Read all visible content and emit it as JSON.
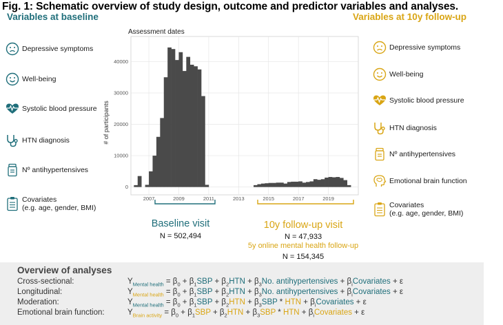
{
  "figure": {
    "title": "Fig. 1: Schematic overview of study design, outcome and predictor variables and analyses."
  },
  "colors": {
    "teal": "#1f6e7a",
    "gold": "#d9a514",
    "bar": "#4a4a4a",
    "panel": "#eeeeee"
  },
  "baseline": {
    "heading": "Variables at baseline",
    "items": [
      {
        "label": "Depressive symptoms",
        "icon": "sad-face-icon"
      },
      {
        "label": "Well-being",
        "icon": "smile-face-icon"
      },
      {
        "label": "Systolic blood pressure",
        "icon": "heart-pulse-icon"
      },
      {
        "label": "HTN diagnosis",
        "icon": "stethoscope-icon"
      },
      {
        "label": "Nº antihypertensives",
        "icon": "pill-bottle-icon"
      },
      {
        "label": "Covariates",
        "sublabel": "(e.g. age, gender, BMI)",
        "icon": "clipboard-icon"
      }
    ]
  },
  "followup": {
    "heading": "Variables at 10y follow-up",
    "items": [
      {
        "label": "Depressive symptoms",
        "icon": "sad-face-icon"
      },
      {
        "label": "Well-being",
        "icon": "smile-face-icon"
      },
      {
        "label": "Systolic blood pressure",
        "icon": "heart-pulse-icon"
      },
      {
        "label": "HTN diagnosis",
        "icon": "stethoscope-icon"
      },
      {
        "label": "Nº antihypertensives",
        "icon": "pill-bottle-icon"
      },
      {
        "label": "Emotional brain function",
        "icon": "brain-head-icon"
      },
      {
        "label": "Covariates",
        "sublabel": "(e.g. age, gender, BMI)",
        "icon": "clipboard-icon"
      }
    ]
  },
  "chart_data": {
    "type": "bar",
    "title": "Assessment dates",
    "xlabel": "",
    "ylabel": "# of participants",
    "xlim": [
      2005.8,
      2021.0
    ],
    "ylim": [
      -2500,
      48000
    ],
    "xticks": [
      2007,
      2009,
      2011,
      2013,
      2015,
      2017,
      2019
    ],
    "yticks": [
      0,
      10000,
      20000,
      30000,
      40000
    ],
    "grid": true,
    "bin_width": 0.25,
    "x": [
      2006.0,
      2006.25,
      2006.5,
      2006.75,
      2007.0,
      2007.25,
      2007.5,
      2007.75,
      2008.0,
      2008.25,
      2008.5,
      2008.75,
      2009.0,
      2009.25,
      2009.5,
      2009.75,
      2010.0,
      2010.25,
      2010.5,
      2010.75,
      2014.0,
      2014.25,
      2014.5,
      2014.75,
      2015.0,
      2015.25,
      2015.5,
      2015.75,
      2016.0,
      2016.25,
      2016.5,
      2016.75,
      2017.0,
      2017.25,
      2017.5,
      2017.75,
      2018.0,
      2018.25,
      2018.5,
      2018.75,
      2019.0,
      2019.25,
      2019.5,
      2019.75,
      2020.0,
      2020.25
    ],
    "values": [
      600,
      3500,
      0,
      700,
      5000,
      10000,
      16000,
      22000,
      35000,
      44500,
      44000,
      40500,
      43000,
      37000,
      41500,
      39000,
      38500,
      37500,
      29000,
      700,
      600,
      900,
      1100,
      1200,
      1300,
      1300,
      1400,
      1400,
      1100,
      1600,
      1700,
      1700,
      1800,
      1400,
      1600,
      1800,
      2500,
      2300,
      2500,
      3000,
      3200,
      3100,
      3200,
      2900,
      2200,
      600
    ]
  },
  "visits": {
    "baseline": {
      "label": "Baseline visit",
      "n": "N = 502,494"
    },
    "followup": {
      "label": "10y follow-up visit",
      "n": "N = 47,933"
    },
    "online": {
      "label": "5y online mental health follow-up",
      "n": "N = 154,345"
    }
  },
  "analyses": {
    "title": "Overview of analyses",
    "rows": [
      {
        "label": "Cross-sectional:",
        "y_sub": "Mental health",
        "b1": "SBP",
        "b2": "HTN",
        "b3": "No. antihypertensives",
        "bi": "Covariates"
      },
      {
        "label": "Longitudinal:",
        "y_sub": "Mental health",
        "b1": "SBP",
        "b2": "HTN",
        "b3": "No. antihypertensives",
        "bi": "Covariates"
      },
      {
        "label": "Moderation:",
        "y_sub": "Mental health",
        "b1": "SBP",
        "b2": "HTN",
        "b3a": "SBP",
        "b3b": "HTN",
        "bi": "Covariates"
      },
      {
        "label": "Emotional brain function:",
        "y_sub": "Brain activity",
        "b1": "SBP",
        "b2": "HTN",
        "b3a": "SBP",
        "b3b": "HTN",
        "bi": "Covariates"
      }
    ]
  }
}
